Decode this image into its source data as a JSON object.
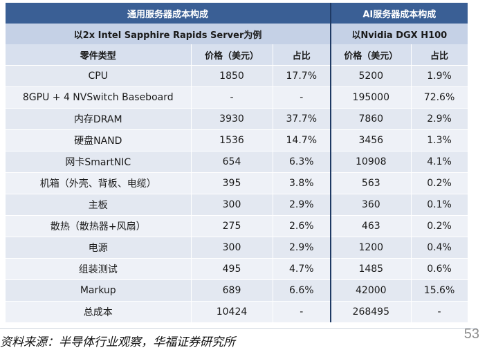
{
  "header": {
    "left_group_title": "通用服务器成本构成",
    "right_group_title": "AI服务器成本构成",
    "left_server": "以2x Intel Sapphire Rapids Server为例",
    "right_server": "以Nvidia DGX H100"
  },
  "columns": {
    "part_type": "零件类型",
    "left_price": "价格（美元）",
    "left_share": "占比",
    "right_price": "价格（美元）",
    "right_share": "占比"
  },
  "rows": [
    {
      "part": "CPU",
      "l_price": "1850",
      "l_share": "17.7%",
      "r_price": "5200",
      "r_share": "1.9%"
    },
    {
      "part": "8GPU + 4 NVSwitch Baseboard",
      "l_price": "-",
      "l_share": "-",
      "r_price": "195000",
      "r_share": "72.6%"
    },
    {
      "part": "内存DRAM",
      "l_price": "3930",
      "l_share": "37.7%",
      "r_price": "7860",
      "r_share": "2.9%"
    },
    {
      "part": "硬盘NAND",
      "l_price": "1536",
      "l_share": "14.7%",
      "r_price": "3456",
      "r_share": "1.3%"
    },
    {
      "part": "网卡SmartNIC",
      "l_price": "654",
      "l_share": "6.3%",
      "r_price": "10908",
      "r_share": "4.1%"
    },
    {
      "part": "机箱（外壳、背板、电缆）",
      "l_price": "395",
      "l_share": "3.8%",
      "r_price": "563",
      "r_share": "0.2%"
    },
    {
      "part": "主板",
      "l_price": "300",
      "l_share": "2.9%",
      "r_price": "360",
      "r_share": "0.1%"
    },
    {
      "part": "散热（散热器+风扇）",
      "l_price": "275",
      "l_share": "2.6%",
      "r_price": "463",
      "r_share": "0.2%"
    },
    {
      "part": "电源",
      "l_price": "300",
      "l_share": "2.9%",
      "r_price": "1200",
      "r_share": "0.4%"
    },
    {
      "part": "组装测试",
      "l_price": "495",
      "l_share": "4.7%",
      "r_price": "1485",
      "r_share": "0.6%"
    },
    {
      "part": "Markup",
      "l_price": "689",
      "l_share": "6.6%",
      "r_price": "42000",
      "r_share": "15.6%"
    },
    {
      "part": "总成本",
      "l_price": "10424",
      "l_share": "-",
      "r_price": "268495",
      "r_share": "-"
    }
  ],
  "footer": {
    "source": "资料来源：半导体行业观察，华福证券研究所",
    "page_number": "53"
  }
}
